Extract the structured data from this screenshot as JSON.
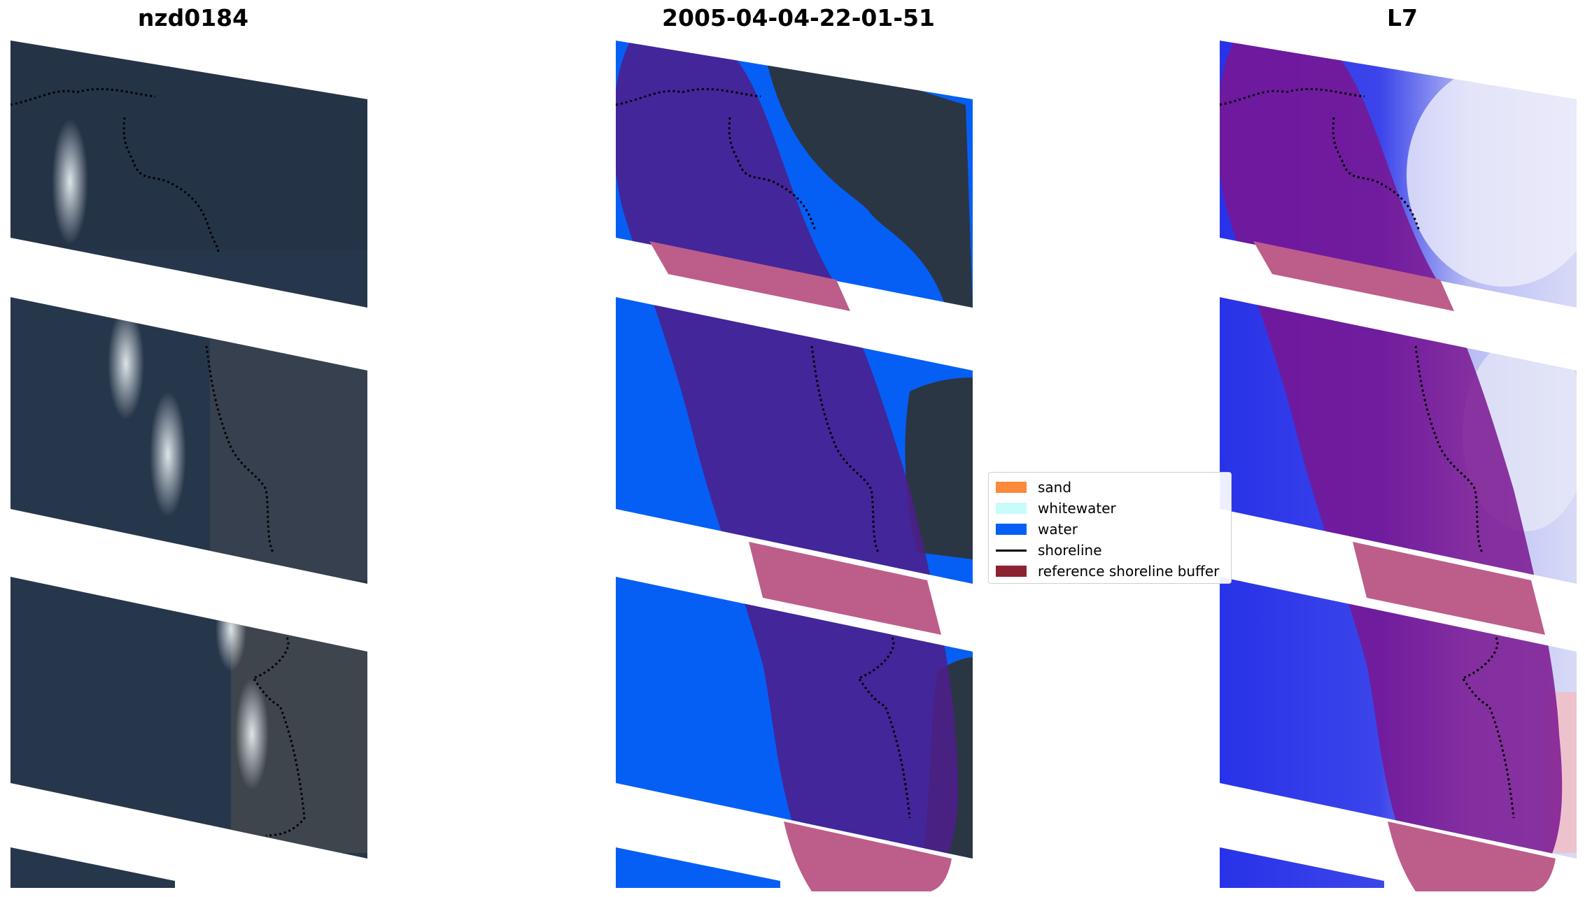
{
  "panels": {
    "left_title": "nzd0184",
    "middle_title": "2005-04-04-22-01-51",
    "right_title": "L7"
  },
  "legend": {
    "items": [
      {
        "label": "sand",
        "color": "#fb8a3c"
      },
      {
        "label": "whitewater",
        "color": "#c8fcf9"
      },
      {
        "label": "water",
        "color": "#055ff5"
      },
      {
        "label": "shoreline",
        "color": "#000000"
      },
      {
        "label": "reference shoreline buffer",
        "color": "#8b2330"
      }
    ]
  },
  "colors": {
    "rgb_image_base": "#27364a",
    "water_class": "#055ff5",
    "buffer_overlay": "#c8306a",
    "mndwi_high": "#2832e8",
    "mndwi_low": "#f2f2fa"
  }
}
